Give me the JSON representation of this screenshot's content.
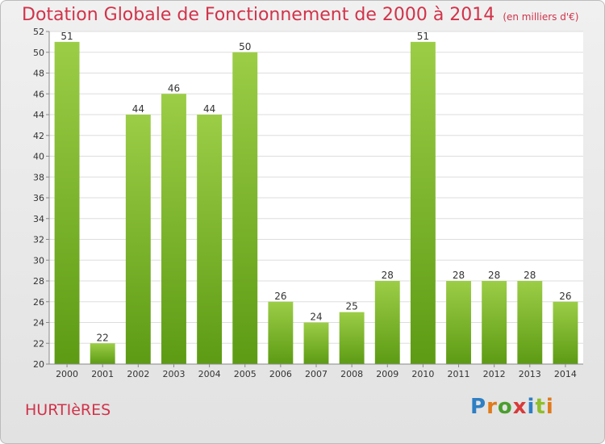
{
  "title": "Dotation Globale de Fonctionnement de 2000 à 2014",
  "subtitle": "(en milliers d'€)",
  "commune": "HURTIèRES",
  "logo": {
    "text": "Proxiti",
    "letters": [
      "P",
      "r",
      "o",
      "x",
      "i",
      "t",
      "i"
    ],
    "colors": [
      "#2e7fc4",
      "#e07a1a",
      "#4a9e2e",
      "#d83a3a",
      "#2e7fc4",
      "#8fbf2a",
      "#e07a1a"
    ]
  },
  "chart_data": {
    "type": "bar",
    "categories": [
      "2000",
      "2001",
      "2002",
      "2003",
      "2004",
      "2005",
      "2006",
      "2007",
      "2008",
      "2009",
      "2010",
      "2011",
      "2012",
      "2013",
      "2014"
    ],
    "values": [
      51,
      22,
      44,
      46,
      44,
      50,
      26,
      24,
      25,
      28,
      51,
      28,
      28,
      28,
      26
    ],
    "ylim": [
      20,
      52
    ],
    "yticks": [
      20,
      22,
      24,
      26,
      28,
      30,
      32,
      34,
      36,
      38,
      40,
      42,
      44,
      46,
      48,
      50,
      52
    ],
    "grid": true,
    "bar_color_top": "#9ccd47",
    "bar_color_bottom": "#5d9b14",
    "title": "Dotation Globale de Fonctionnement de 2000 à 2014",
    "xlabel": "",
    "ylabel": ""
  }
}
